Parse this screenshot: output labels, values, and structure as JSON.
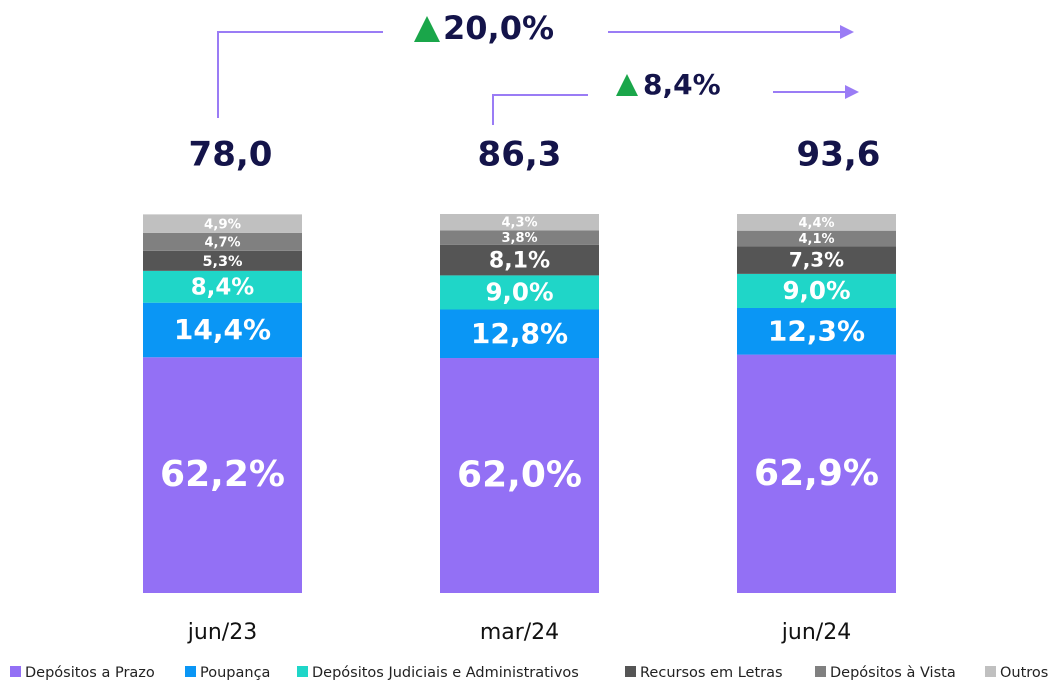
{
  "chart_data": {
    "type": "stacked_bar",
    "categories": [
      "jun/23",
      "mar/24",
      "jun/24"
    ],
    "ylim": [
      0,
      100
    ],
    "totals": {
      "values": [
        78.0,
        86.3,
        93.6
      ],
      "value_labels": [
        "78,0",
        "86,3",
        "93,6"
      ]
    },
    "annotations": [
      {
        "value": 20.0,
        "label": "20,0%"
      },
      {
        "value": 8.4,
        "label": "8,4%"
      }
    ],
    "series": [
      {
        "name": "Depósitos a Prazo",
        "color": "#9370f5",
        "values": [
          62.2,
          62.0,
          62.9
        ],
        "value_labels": [
          "62,2%",
          "62,0%",
          "62,9%"
        ]
      },
      {
        "name": "Poupança",
        "color": "#0a96f5",
        "values": [
          14.4,
          12.8,
          12.3
        ],
        "value_labels": [
          "14,4%",
          "12,8%",
          "12,3%"
        ]
      },
      {
        "name": "Depósitos Judiciais e Administrativos",
        "color": "#1fd6c8",
        "values": [
          8.4,
          9.0,
          9.0
        ],
        "value_labels": [
          "8,4%",
          "9,0%",
          "9,0%"
        ]
      },
      {
        "name": "Recursos em Letras",
        "color": "#555555",
        "values": [
          5.3,
          8.1,
          7.3
        ],
        "value_labels": [
          "5,3%",
          "8,1%",
          "7,3%"
        ]
      },
      {
        "name": "Depósitos à Vista",
        "color": "#808080",
        "values": [
          4.7,
          3.8,
          4.1
        ],
        "value_labels": [
          "4,7%",
          "3,8%",
          "4,1%"
        ]
      },
      {
        "name": "Outros",
        "color": "#c0c0c0",
        "values": [
          4.9,
          4.3,
          4.4
        ],
        "value_labels": [
          "4,9%",
          "4,3%",
          "4,4%"
        ]
      }
    ],
    "legend": "bottom"
  }
}
